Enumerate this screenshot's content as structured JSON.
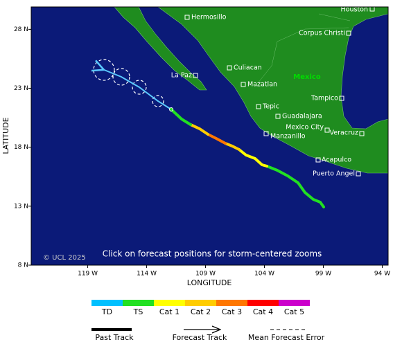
{
  "map": {
    "xlabel": "LONGITUDE",
    "ylabel": "LATITUDE",
    "xlim": [
      123.8,
      93.5
    ],
    "ylim": [
      8,
      29.9
    ],
    "xticks": [
      {
        "value": 119,
        "label": "119 W"
      },
      {
        "value": 114,
        "label": "114 W"
      },
      {
        "value": 109,
        "label": "109 W"
      },
      {
        "value": 104,
        "label": "104 W"
      },
      {
        "value": 99,
        "label": "99 W"
      },
      {
        "value": 94,
        "label": "94 W"
      }
    ],
    "yticks": [
      {
        "value": 8,
        "label": "8 N"
      },
      {
        "value": 13,
        "label": "13 N"
      },
      {
        "value": 18,
        "label": "18 N"
      },
      {
        "value": 23,
        "label": "23 N"
      },
      {
        "value": 28,
        "label": "28 N"
      }
    ],
    "country": "Mexico",
    "cities": [
      "Houston",
      "Hermosillo",
      "Corpus Christi",
      "Culiacan",
      "La Paz",
      "Mazatlan",
      "Tampico",
      "Tepic",
      "Guadalajara",
      "Mexico City",
      "Manzanillo",
      "Veracruz",
      "Acapulco",
      "Puerto Angel"
    ],
    "copyright": "© UCL 2025",
    "note": "Click on forecast positions for storm-centered zooms"
  },
  "legend": {
    "intensity": [
      {
        "name": "TD",
        "color": "#00c0ff"
      },
      {
        "name": "TS",
        "color": "#22e022"
      },
      {
        "name": "Cat 1",
        "color": "#ffff00"
      },
      {
        "name": "Cat 2",
        "color": "#ffcc00"
      },
      {
        "name": "Cat 3",
        "color": "#ff7700"
      },
      {
        "name": "Cat 4",
        "color": "#ff0000"
      },
      {
        "name": "Cat 5",
        "color": "#cc00cc"
      }
    ],
    "tracks": [
      "Past Track",
      "Forecast Track",
      "Mean Forecast Error"
    ]
  }
}
